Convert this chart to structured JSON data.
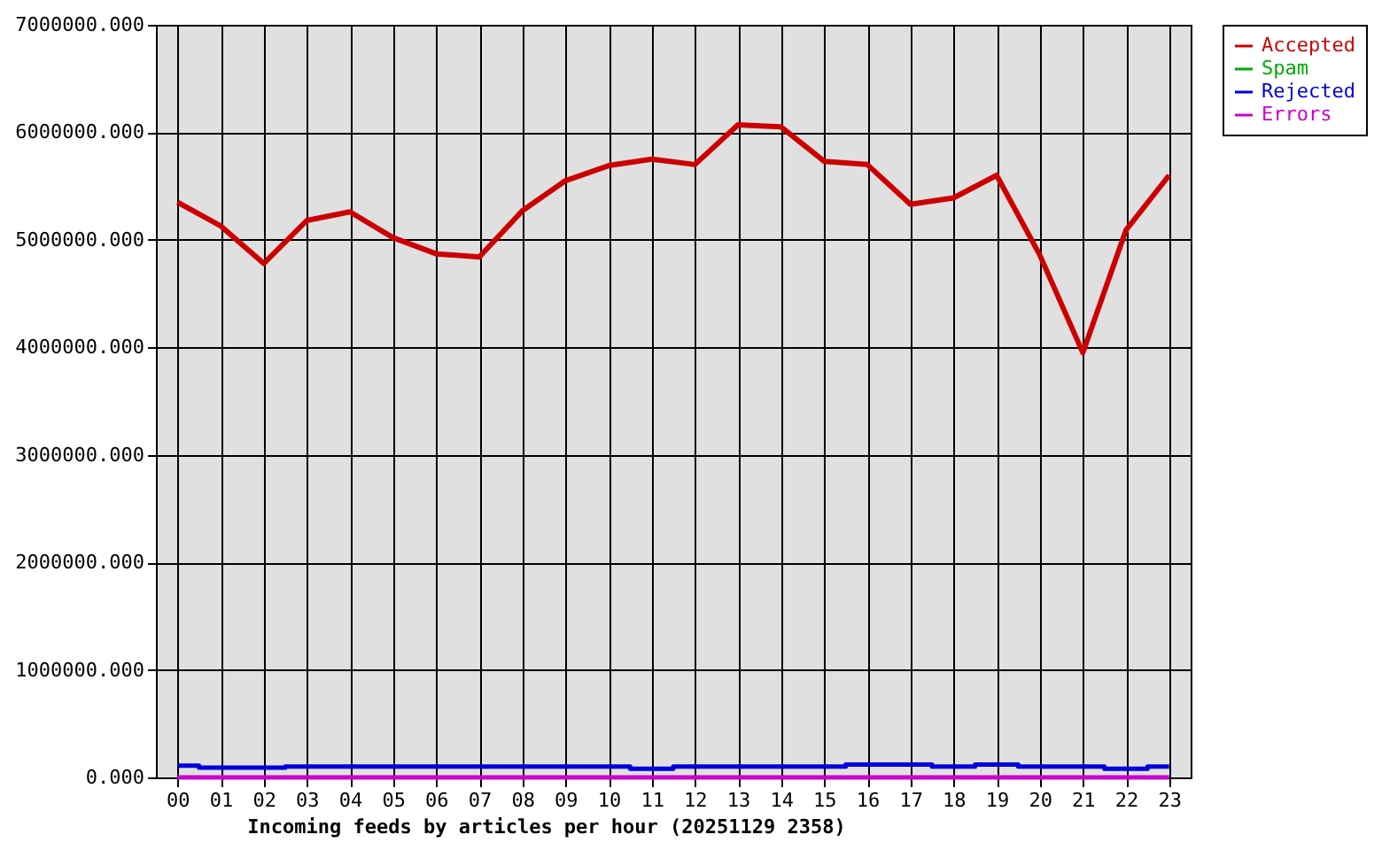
{
  "chart_data": {
    "type": "line",
    "xlabel": "Incoming feeds by articles per hour (20251129 2358)",
    "categories": [
      "00",
      "01",
      "02",
      "03",
      "04",
      "05",
      "06",
      "07",
      "08",
      "09",
      "10",
      "11",
      "12",
      "13",
      "14",
      "15",
      "16",
      "17",
      "18",
      "19",
      "20",
      "21",
      "22",
      "23"
    ],
    "series": [
      {
        "name": "Accepted",
        "color": "#cc0000",
        "values": [
          5350000,
          5130000,
          4780000,
          5180000,
          5260000,
          5020000,
          4870000,
          4840000,
          5270000,
          5550000,
          5690000,
          5750000,
          5700000,
          6070000,
          6050000,
          5730000,
          5700000,
          5330000,
          5390000,
          5600000,
          4860000,
          3950000,
          5090000,
          5600000
        ]
      },
      {
        "name": "Spam",
        "color": "#00aa00",
        "values": [
          null,
          null,
          null,
          null,
          null,
          null,
          null,
          null,
          null,
          null,
          null,
          null,
          null,
          null,
          null,
          null,
          null,
          null,
          null,
          null,
          null,
          null,
          null,
          null
        ]
      },
      {
        "name": "Rejected",
        "color": "#0000dd",
        "type": "step",
        "values": [
          110000,
          90000,
          90000,
          100000,
          100000,
          100000,
          100000,
          100000,
          100000,
          100000,
          100000,
          80000,
          100000,
          100000,
          100000,
          100000,
          120000,
          120000,
          100000,
          120000,
          100000,
          100000,
          80000,
          100000
        ]
      },
      {
        "name": "Errors",
        "color": "#cc00cc",
        "values": [
          0,
          0,
          0,
          0,
          0,
          0,
          0,
          0,
          0,
          0,
          0,
          0,
          0,
          0,
          0,
          0,
          0,
          0,
          0,
          0,
          0,
          0,
          0,
          0
        ]
      }
    ],
    "ylim": [
      0,
      7000000
    ],
    "yticks": [
      {
        "value": 0,
        "label": "0.000"
      },
      {
        "value": 1000000,
        "label": "1000000.000"
      },
      {
        "value": 2000000,
        "label": "2000000.000"
      },
      {
        "value": 3000000,
        "label": "3000000.000"
      },
      {
        "value": 4000000,
        "label": "4000000.000"
      },
      {
        "value": 5000000,
        "label": "5000000.000"
      },
      {
        "value": 6000000,
        "label": "6000000.000"
      },
      {
        "value": 7000000,
        "label": "7000000.000"
      }
    ],
    "grid": true,
    "legend": "top right",
    "marker": "none",
    "line_style": "solid"
  }
}
